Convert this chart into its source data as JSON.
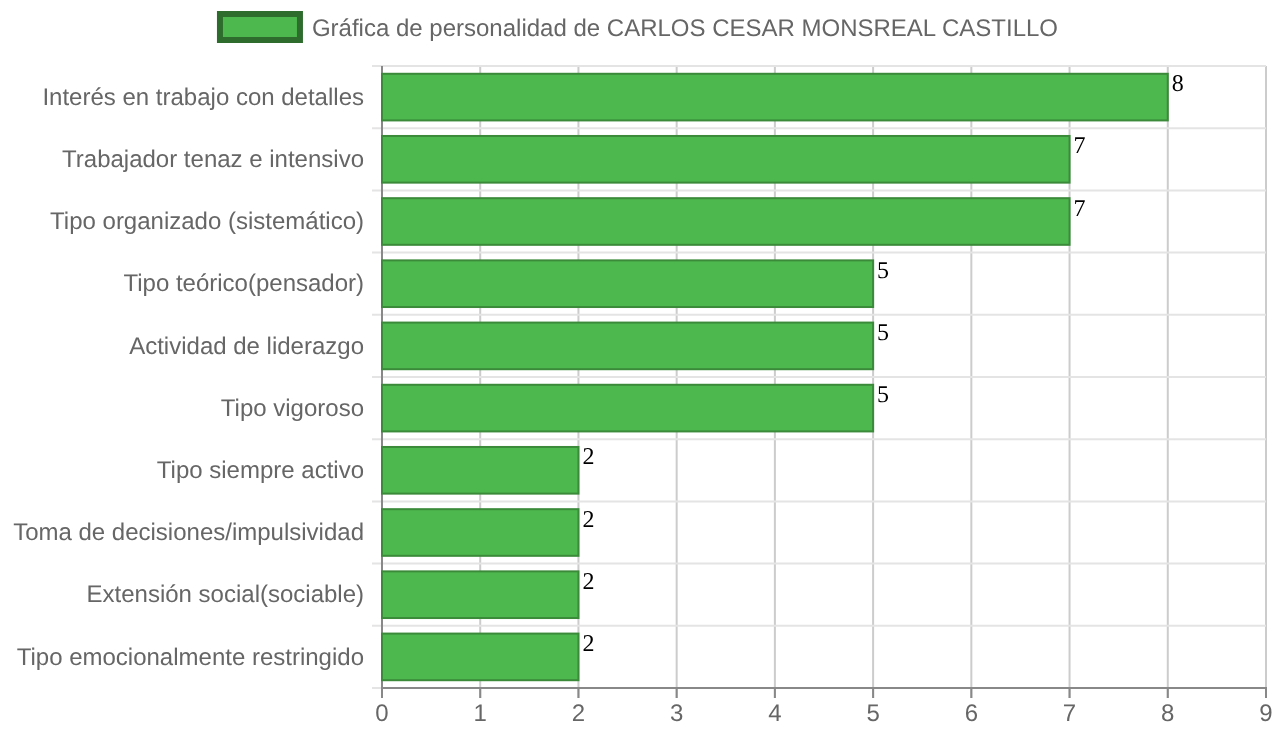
{
  "chart_data": {
    "type": "bar",
    "orientation": "horizontal",
    "categories": [
      "Interés en trabajo con detalles",
      "Trabajador tenaz e intensivo",
      "Tipo organizado (sistemático)",
      "Tipo teórico(pensador)",
      "Actividad de liderazgo",
      "Tipo vigoroso",
      "Tipo siempre activo",
      "Toma de decisiones/impulsividad",
      "Extensión social(sociable)",
      "Tipo emocionalmente restringido"
    ],
    "series": [
      {
        "name": "Gráfica de personalidad de CARLOS CESAR MONSREAL CASTILLO",
        "color": "#4db84d",
        "values": [
          8,
          7,
          7,
          5,
          5,
          5,
          2,
          2,
          2,
          2
        ]
      }
    ],
    "xlim": [
      0,
      9
    ],
    "xticks": [
      0,
      1,
      2,
      3,
      4,
      5,
      6,
      7,
      8,
      9
    ],
    "grid": true,
    "legend": "top",
    "data_labels": true
  }
}
